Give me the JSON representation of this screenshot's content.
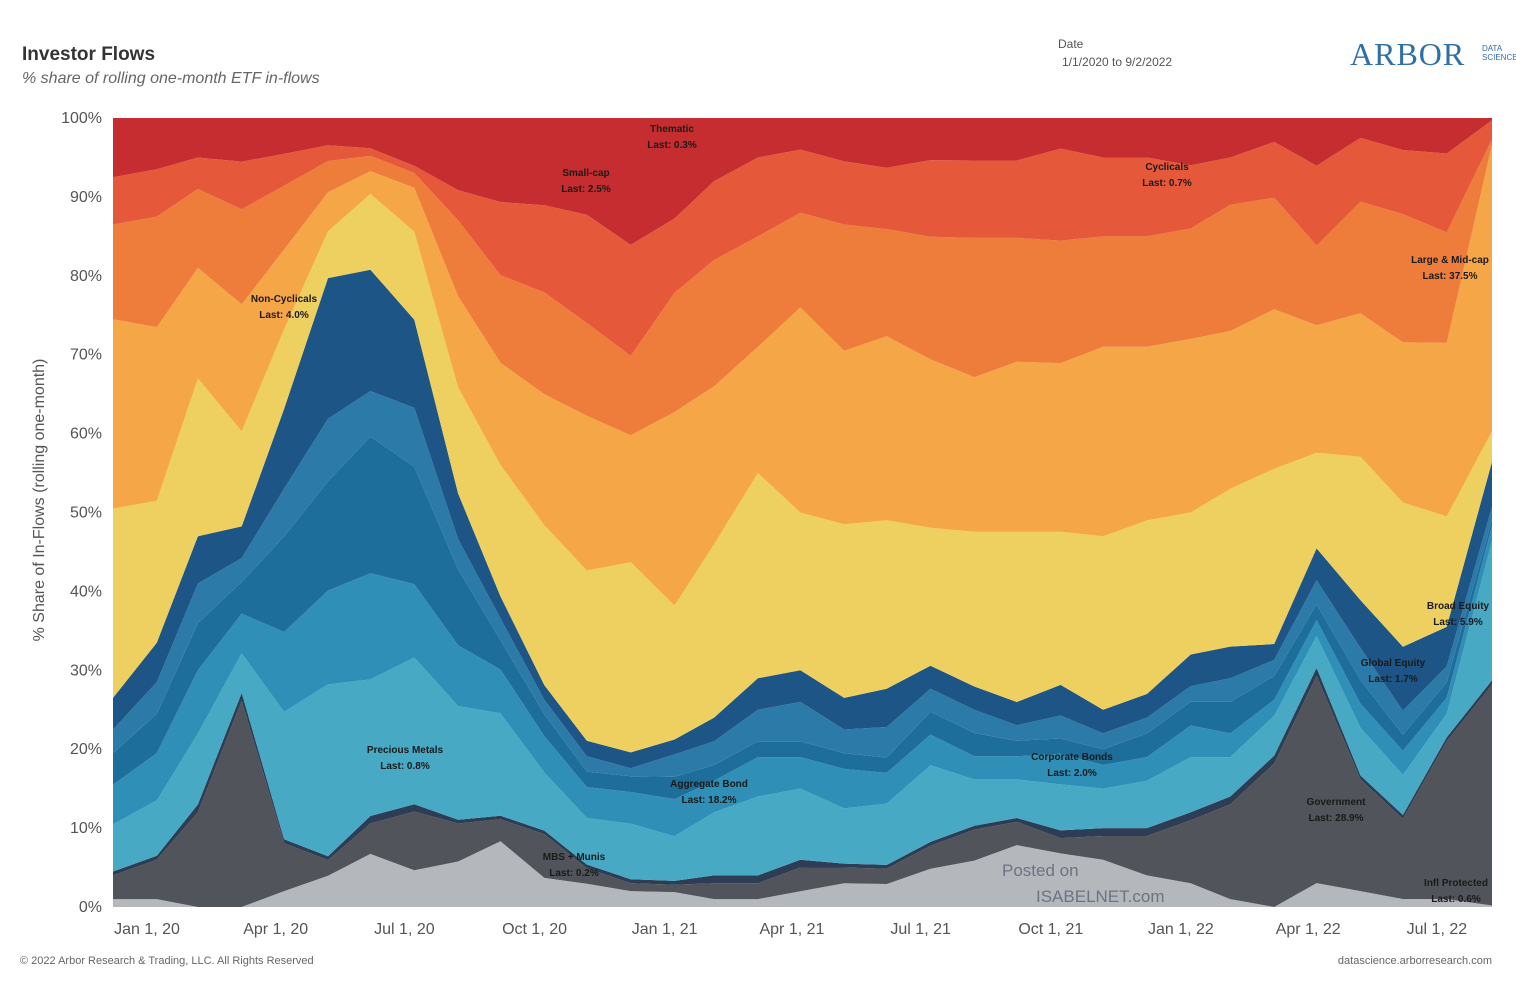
{
  "header": {
    "title": "Investor Flows",
    "subtitle": "% share of rolling one-month ETF in-flows",
    "date_label": "Date",
    "date_value": "1/1/2020 to 9/2/2022",
    "logo_text": "ARBOR",
    "logo_sub_1": "DATA",
    "logo_sub_2": "SCIENCE"
  },
  "footer": {
    "copyright": "© 2022 Arbor Research & Trading, LLC. All Rights Reserved",
    "source": "datascience.arborresearch.com"
  },
  "watermark": {
    "line1": "Posted on",
    "line2": "ISABELNET.com"
  },
  "chart_data": {
    "type": "area",
    "stacked": true,
    "normalized": true,
    "title": "Investor Flows",
    "subtitle": "% share of rolling one-month ETF in-flows",
    "ylabel": "% Share of In-Flows (rolling one-month)",
    "ylim": [
      0,
      100
    ],
    "y_ticks": [
      "0%",
      "10%",
      "20%",
      "30%",
      "40%",
      "50%",
      "60%",
      "70%",
      "80%",
      "90%",
      "100%"
    ],
    "x_ticks": [
      "Jan 1, 20",
      "Apr 1, 20",
      "Jul 1, 20",
      "Oct 1, 20",
      "Jan 1, 21",
      "Apr 1, 21",
      "Jul 1, 21",
      "Oct 1, 21",
      "Jan 1, 22",
      "Apr 1, 22",
      "Jul 1, 22"
    ],
    "x": [
      "2020-01-01",
      "2020-02-01",
      "2020-03-01",
      "2020-04-01",
      "2020-05-01",
      "2020-06-01",
      "2020-07-01",
      "2020-08-01",
      "2020-09-01",
      "2020-10-01",
      "2020-11-01",
      "2020-12-01",
      "2021-01-01",
      "2021-02-01",
      "2021-03-01",
      "2021-04-01",
      "2021-05-01",
      "2021-06-01",
      "2021-07-01",
      "2021-08-01",
      "2021-09-01",
      "2021-10-01",
      "2021-11-01",
      "2021-12-01",
      "2022-01-01",
      "2022-02-01",
      "2022-03-01",
      "2022-04-01",
      "2022-05-01",
      "2022-06-01",
      "2022-07-01",
      "2022-08-01",
      "2022-09-02"
    ],
    "grid": false,
    "legend": "none",
    "series": [
      {
        "name": "MBS + Munis",
        "label": "Last: 0.2%",
        "color": "#b4b8bd",
        "values": [
          1,
          1,
          0,
          0,
          2,
          4,
          7,
          5,
          6,
          9,
          4,
          3,
          2,
          2,
          1,
          1,
          2,
          3,
          3,
          5,
          6,
          8,
          7,
          6,
          4,
          3,
          1,
          0,
          3,
          2,
          1,
          1,
          0.2
        ]
      },
      {
        "name": "Government",
        "label": "Last: 28.9%",
        "color": "#51545a",
        "values": [
          3,
          5,
          12,
          26,
          6,
          2,
          4,
          8,
          5,
          3,
          6,
          2,
          1,
          1,
          2,
          2,
          3,
          2,
          2,
          3,
          4,
          3,
          2,
          3,
          5,
          8,
          12,
          18,
          26,
          14,
          10,
          20,
          28.9
        ]
      },
      {
        "name": "Infl Protected",
        "label": "Last: 0.6%",
        "color": "#2d3e54",
        "values": [
          0.5,
          0.5,
          1,
          1,
          0.5,
          0.5,
          1,
          1,
          0.5,
          0.5,
          0.5,
          0.5,
          0.5,
          0.5,
          1,
          1,
          1,
          0.5,
          0.5,
          0.5,
          0.5,
          0.5,
          1,
          1,
          1,
          1,
          1,
          1,
          1,
          0.5,
          0.5,
          0.5,
          0.6
        ]
      },
      {
        "name": "Aggregate Bond",
        "label": "Last: 18.2%",
        "color": "#48a9c5",
        "values": [
          6,
          7,
          9,
          5,
          16,
          22,
          18,
          20,
          15,
          14,
          8,
          6,
          7,
          6,
          8,
          10,
          9,
          7,
          8,
          10,
          6,
          5,
          6,
          5,
          6,
          7,
          5,
          5,
          4,
          6,
          5,
          3,
          18.2
        ]
      },
      {
        "name": "Corporate Bonds",
        "label": "Last: 2.0%",
        "color": "#2f8fb6",
        "values": [
          5,
          6,
          8,
          5,
          10,
          12,
          14,
          10,
          8,
          6,
          5,
          4,
          4,
          5,
          4,
          5,
          4,
          5,
          4,
          4,
          3,
          3,
          4,
          3,
          3,
          4,
          3,
          2,
          2,
          3,
          3,
          2,
          2.0
        ]
      },
      {
        "name": "Precious Metals",
        "label": "Last: 0.8%",
        "color": "#1e6e9c",
        "values": [
          4,
          5,
          6,
          4,
          12,
          14,
          18,
          16,
          10,
          4,
          3,
          2,
          2,
          3,
          2,
          2,
          2,
          2,
          2,
          3,
          3,
          2,
          2,
          2,
          3,
          3,
          4,
          3,
          2,
          3,
          2,
          2,
          0.8
        ]
      },
      {
        "name": "Global Equity",
        "label": "Last: 1.7%",
        "color": "#2c7aa8",
        "values": [
          3,
          4,
          5,
          3,
          6,
          8,
          6,
          8,
          4,
          3,
          2,
          2,
          1,
          3,
          3,
          4,
          5,
          3,
          4,
          3,
          3,
          2,
          3,
          2,
          2,
          2,
          3,
          2,
          3,
          4,
          3,
          2,
          1.7
        ]
      },
      {
        "name": "Broad Equity",
        "label": "Last: 5.9%",
        "color": "#1c5586",
        "values": [
          4,
          5,
          6,
          4,
          10,
          18,
          16,
          12,
          6,
          3,
          2,
          2,
          2,
          2,
          3,
          4,
          4,
          4,
          5,
          3,
          3,
          3,
          4,
          3,
          3,
          4,
          4,
          2,
          4,
          6,
          8,
          5,
          5.9
        ]
      },
      {
        "name": "Non-Cyclicals",
        "label": "Last: 4.0%",
        "color": "#eed060",
        "values": [
          24,
          18,
          20,
          12,
          10,
          6,
          10,
          12,
          14,
          18,
          22,
          22,
          24,
          18,
          22,
          26,
          20,
          22,
          22,
          18,
          20,
          22,
          20,
          22,
          22,
          18,
          20,
          22,
          12,
          18,
          18,
          14,
          4.0
        ]
      },
      {
        "name": "Large & Mid-cap",
        "label": "Last: 37.5%",
        "color": "#f5a646",
        "values": [
          24,
          22,
          14,
          16,
          10,
          5,
          3,
          6,
          12,
          14,
          18,
          20,
          16,
          26,
          20,
          16,
          26,
          22,
          24,
          22,
          20,
          22,
          22,
          24,
          22,
          22,
          20,
          20,
          16,
          18,
          20,
          22,
          37.5
        ]
      },
      {
        "name": "Cyclicals",
        "label": "Last: 0.7%",
        "color": "#ee7c3a",
        "values": [
          12,
          14,
          10,
          12,
          8,
          4,
          2,
          2,
          10,
          12,
          14,
          12,
          10,
          16,
          16,
          14,
          12,
          16,
          14,
          16,
          18,
          16,
          16,
          14,
          14,
          14,
          16,
          14,
          10,
          14,
          16,
          14,
          0.7
        ]
      },
      {
        "name": "Small-cap",
        "label": "Last: 2.5%",
        "color": "#e5593a",
        "values": [
          6,
          6,
          4,
          6,
          4,
          2,
          1,
          1,
          4,
          10,
          12,
          14,
          14,
          10,
          10,
          10,
          8,
          8,
          8,
          10,
          10,
          10,
          12,
          10,
          10,
          8,
          6,
          7,
          10,
          8,
          8,
          10,
          2.5
        ]
      },
      {
        "name": "Thematic",
        "label": "Last: 0.3%",
        "color": "#c62d30",
        "values": [
          7.5,
          6.5,
          5,
          5.5,
          4.5,
          3.5,
          4,
          6.5,
          9.5,
          11.5,
          12,
          12.5,
          16,
          13.5,
          8,
          5,
          4,
          5.5,
          6.5,
          5.5,
          5.5,
          5.5,
          4,
          5,
          5,
          6,
          5,
          3,
          6,
          2.5,
          4,
          4.5,
          0.3
        ]
      }
    ]
  }
}
